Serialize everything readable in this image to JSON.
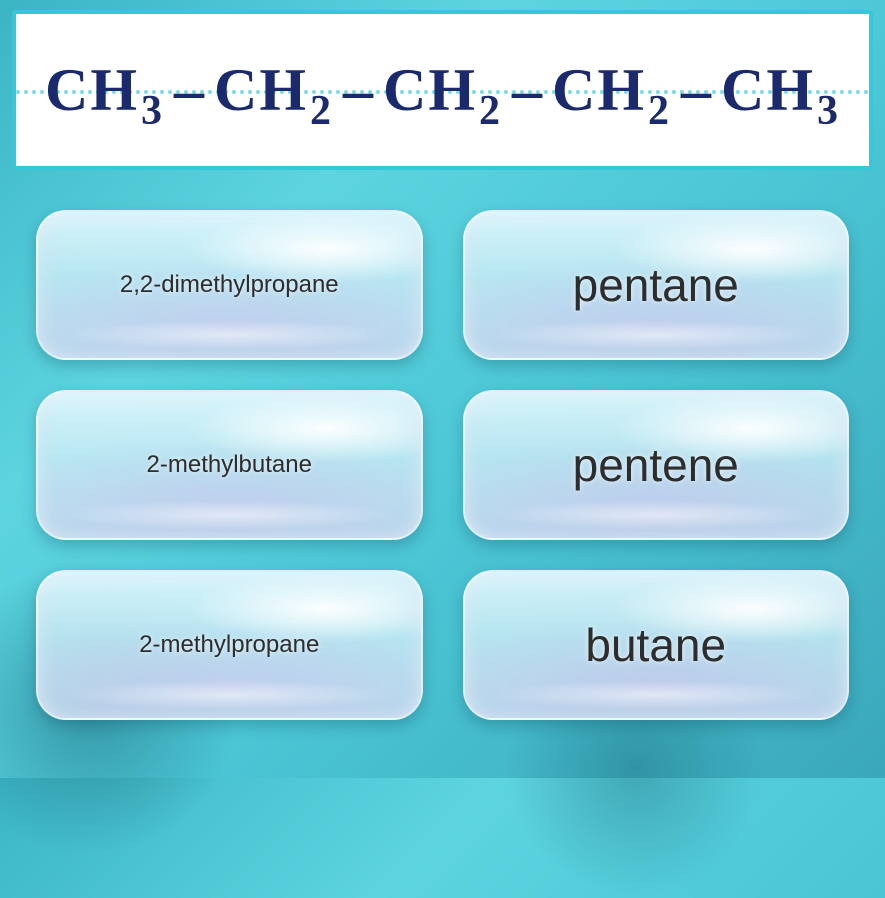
{
  "formula": {
    "segments": [
      {
        "base": "CH",
        "sub": "3"
      },
      {
        "base": "CH",
        "sub": "2"
      },
      {
        "base": "CH",
        "sub": "2"
      },
      {
        "base": "CH",
        "sub": "2"
      },
      {
        "base": "CH",
        "sub": "3"
      }
    ],
    "dash": "–",
    "text_color": "#1a2a6c",
    "card_bg": "#ffffff",
    "card_border": "#34c8d8",
    "dot_color": "#5ed2e2"
  },
  "answers": [
    {
      "label": "2,2-dimethylpropane",
      "size": "small"
    },
    {
      "label": "pentane",
      "size": "large"
    },
    {
      "label": "2-methylbutane",
      "size": "small"
    },
    {
      "label": "pentene",
      "size": "large"
    },
    {
      "label": "2-methylpropane",
      "size": "small"
    },
    {
      "label": "butane",
      "size": "large"
    }
  ],
  "style": {
    "bg_gradient": [
      "#3bb5c4",
      "#5dd4e0",
      "#4ac5d4",
      "#3aa8ba"
    ],
    "button_highlight": "#ffffff",
    "button_tint": "#c8e8f2",
    "button_border_radius": 30,
    "label_color": "#2d2d2d",
    "fontsize_small": 24,
    "fontsize_large": 46
  }
}
